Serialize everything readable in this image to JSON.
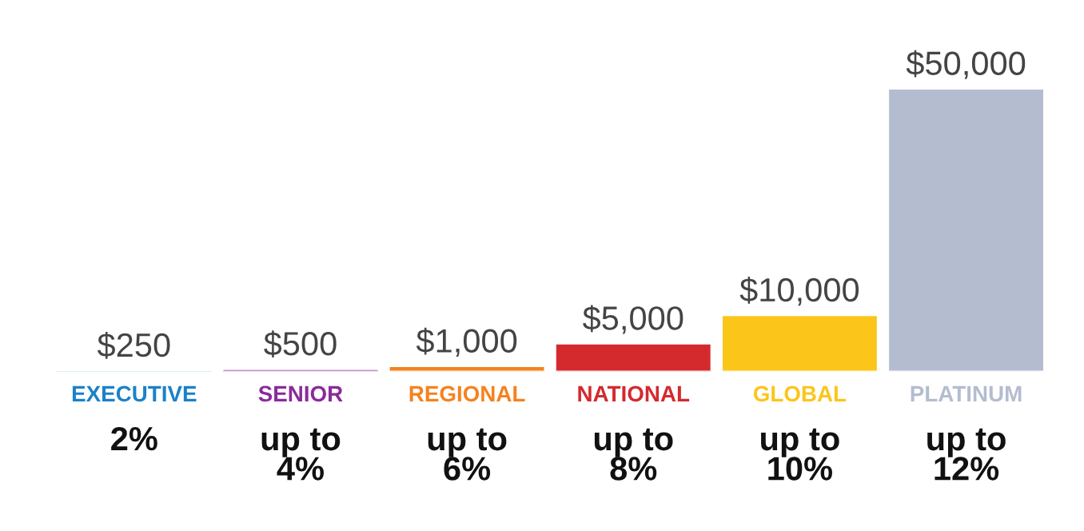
{
  "chart_data": {
    "type": "bar",
    "categories": [
      "EXECUTIVE",
      "SENIOR",
      "REGIONAL",
      "NATIONAL",
      "GLOBAL",
      "PLATINUM"
    ],
    "values": [
      250,
      500,
      1000,
      5000,
      10000,
      50000
    ],
    "colors": [
      "#1a82c8",
      "#8b2a9b",
      "#f5821f",
      "#d42a2e",
      "#fcc51a",
      "#b4bcd0"
    ],
    "value_labels": [
      "$250",
      "$500",
      "$1,000",
      "$5,000",
      "$10,000",
      "$50,000"
    ],
    "annotations": [
      "2%",
      "up to\n4%",
      "up to\n6%",
      "up to\n8%",
      "up to\n10%",
      "up to\n12%"
    ],
    "legend": false
  }
}
